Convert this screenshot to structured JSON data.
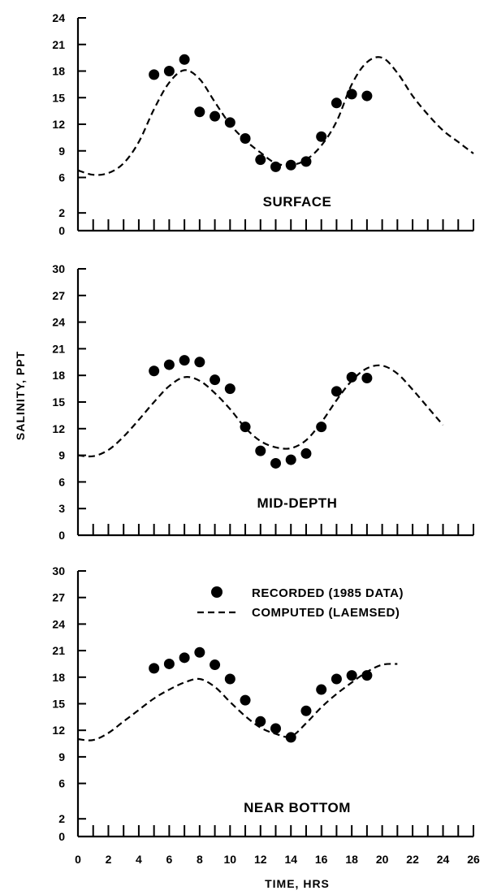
{
  "chart_data": {
    "type": "scatter",
    "xlabel": "TIME, HRS",
    "ylabel": "SALINITY, PPT",
    "x_ticks": [
      0,
      2,
      4,
      6,
      8,
      10,
      12,
      14,
      16,
      18,
      20,
      22,
      24,
      26
    ],
    "xlim": [
      0,
      26
    ],
    "legend": {
      "placement": "top-right of bottom panel",
      "entries": [
        {
          "marker": "dot",
          "label": "RECORDED (1985 DATA)"
        },
        {
          "marker": "dashed-line",
          "label": "COMPUTED (LAEMSED)"
        }
      ]
    },
    "panels": [
      {
        "label": "SURFACE",
        "ylim": [
          0,
          24
        ],
        "y_ticks": [
          0,
          2,
          6,
          9,
          12,
          15,
          18,
          21,
          24
        ],
        "series": [
          {
            "name": "RECORDED (1985 DATA)",
            "type": "scatter",
            "x": [
              5,
              6,
              7,
              8,
              9,
              10,
              11,
              12,
              13,
              14,
              15,
              16,
              17,
              18,
              19
            ],
            "y": [
              17.6,
              18.0,
              19.3,
              13.4,
              12.9,
              12.2,
              10.4,
              8.0,
              7.2,
              7.4,
              7.8,
              10.6,
              14.4,
              15.4,
              15.2
            ]
          },
          {
            "name": "COMPUTED (LAEMSED)",
            "type": "line",
            "x": [
              0,
              1,
              2,
              3,
              4,
              5,
              6,
              7,
              8,
              9,
              10,
              11,
              12,
              13,
              14,
              15,
              16,
              17,
              18,
              19,
              20,
              21,
              22,
              23,
              24,
              25,
              26
            ],
            "y": [
              6.8,
              6.3,
              6.5,
              7.6,
              10.0,
              13.7,
              16.7,
              18.1,
              17.1,
              14.5,
              12.0,
              10.2,
              8.8,
              7.6,
              7.4,
              8.0,
              9.6,
              12.3,
              16.5,
              19.0,
              19.5,
              17.8,
              15.2,
              13.1,
              11.3,
              10.0,
              8.7
            ]
          }
        ]
      },
      {
        "label": "MID-DEPTH",
        "ylim": [
          0,
          30
        ],
        "y_ticks": [
          0,
          3,
          6,
          9,
          12,
          15,
          18,
          21,
          24,
          27,
          30
        ],
        "series": [
          {
            "name": "RECORDED (1985 DATA)",
            "type": "scatter",
            "x": [
              5,
              6,
              7,
              8,
              9,
              10,
              11,
              12,
              13,
              14,
              15,
              16,
              17,
              18,
              19
            ],
            "y": [
              18.5,
              19.2,
              19.7,
              19.5,
              17.5,
              16.5,
              12.2,
              9.5,
              8.1,
              8.5,
              9.2,
              12.2,
              16.2,
              17.8,
              17.7
            ]
          },
          {
            "name": "COMPUTED (LAEMSED)",
            "type": "line",
            "x": [
              0,
              1,
              2,
              3,
              4,
              5,
              6,
              7,
              8,
              9,
              10,
              11,
              12,
              13,
              14,
              15,
              16,
              17,
              18,
              19,
              20,
              21,
              22,
              23,
              24
            ],
            "y": [
              9.0,
              8.9,
              9.6,
              11.1,
              13.0,
              15.0,
              16.8,
              17.8,
              17.4,
              16.0,
              14.2,
              12.1,
              10.6,
              9.9,
              9.8,
              10.7,
              12.7,
              15.2,
              17.4,
              18.8,
              19.1,
              18.2,
              16.4,
              14.4,
              12.4
            ]
          }
        ]
      },
      {
        "label": "NEAR BOTTOM",
        "ylim": [
          0,
          30
        ],
        "y_ticks": [
          0,
          2,
          6,
          9,
          12,
          15,
          18,
          21,
          24,
          27,
          30
        ],
        "series": [
          {
            "name": "RECORDED (1985 DATA)",
            "type": "scatter",
            "x": [
              5,
              6,
              7,
              8,
              9,
              10,
              11,
              12,
              13,
              14,
              15,
              16,
              17,
              18,
              19
            ],
            "y": [
              19.0,
              19.5,
              20.2,
              20.8,
              19.4,
              17.8,
              15.4,
              13.0,
              12.2,
              11.2,
              14.2,
              16.6,
              17.8,
              18.2,
              18.2
            ]
          },
          {
            "name": "COMPUTED (LAEMSED)",
            "type": "line",
            "x": [
              0,
              1,
              2,
              3,
              4,
              5,
              6,
              7,
              8,
              9,
              10,
              11,
              12,
              13,
              14,
              15,
              16,
              17,
              18,
              19,
              20,
              21
            ],
            "y": [
              11.0,
              10.9,
              11.7,
              13.0,
              14.3,
              15.6,
              16.6,
              17.4,
              17.8,
              16.9,
              15.2,
              13.6,
              12.3,
              11.6,
              11.3,
              12.8,
              14.6,
              16.1,
              17.4,
              18.6,
              19.4,
              19.5
            ]
          }
        ]
      }
    ]
  }
}
